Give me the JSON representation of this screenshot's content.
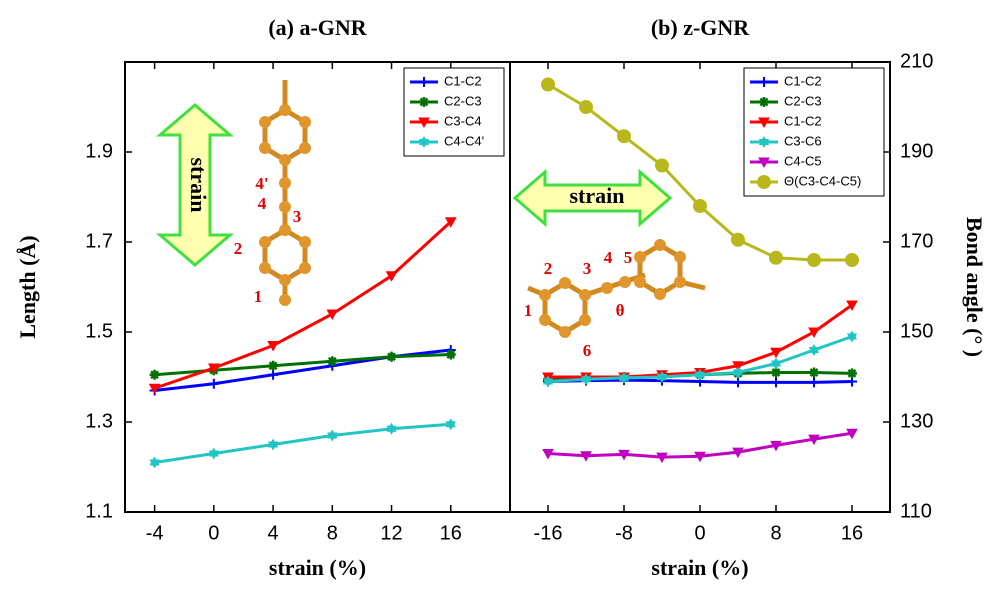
{
  "chart_data": [
    {
      "type": "line",
      "title": "(a) a-GNR",
      "xlabel": "strain (%)",
      "ylabel": "Length (Å)",
      "x": [
        -4,
        0,
        4,
        8,
        12,
        16
      ],
      "xlim": [
        -6,
        20
      ],
      "xticks": [
        -4,
        0,
        4,
        8,
        12,
        16
      ],
      "ylim": [
        1.1,
        2.1
      ],
      "yticks": [
        1.1,
        1.3,
        1.5,
        1.7,
        1.9
      ],
      "legend": "upper right",
      "series": [
        {
          "name": "C1-C2",
          "color": "#0000ff",
          "marker": "plus",
          "values": [
            1.37,
            1.385,
            1.405,
            1.425,
            1.445,
            1.46
          ]
        },
        {
          "name": "C2-C3",
          "color": "#007000",
          "marker": "star",
          "values": [
            1.405,
            1.415,
            1.425,
            1.435,
            1.445,
            1.45
          ]
        },
        {
          "name": "C3-C4",
          "color": "#ff0000",
          "marker": "triangle-down",
          "values": [
            1.375,
            1.42,
            1.47,
            1.54,
            1.625,
            1.745
          ]
        },
        {
          "name": "C4-C4'",
          "color": "#22c4c4",
          "marker": "hexagram",
          "values": [
            1.21,
            1.23,
            1.25,
            1.27,
            1.285,
            1.295
          ]
        }
      ],
      "annotations": [
        "strain",
        "4'",
        "4",
        "3",
        "2",
        "1"
      ]
    },
    {
      "type": "line",
      "title": "(b) z-GNR",
      "xlabel": "strain (%)",
      "y2label": "Bond angle (° )",
      "x": [
        -16,
        -12,
        -8,
        -4,
        0,
        4,
        8,
        12,
        16
      ],
      "xlim": [
        -20,
        20
      ],
      "xticks": [
        -16,
        -8,
        0,
        8,
        16
      ],
      "ylim": [
        1.1,
        2.1
      ],
      "y2lim": [
        110,
        210
      ],
      "y2ticks": [
        110,
        130,
        150,
        170,
        190,
        210
      ],
      "legend": "upper right",
      "series": [
        {
          "name": "C1-C2",
          "color": "#0000ff",
          "marker": "plus",
          "values": [
            1.39,
            1.392,
            1.393,
            1.392,
            1.39,
            1.388,
            1.388,
            1.388,
            1.39
          ]
        },
        {
          "name": "C2-C3",
          "color": "#007000",
          "marker": "star",
          "values": [
            1.395,
            1.398,
            1.4,
            1.402,
            1.405,
            1.408,
            1.41,
            1.41,
            1.408
          ]
        },
        {
          "name": "C1-C2",
          "color": "#ff0000",
          "marker": "triangle-down",
          "values": [
            1.4,
            1.4,
            1.4,
            1.405,
            1.41,
            1.425,
            1.455,
            1.5,
            1.56
          ]
        },
        {
          "name": "C3-C6",
          "color": "#22c4c4",
          "marker": "hexagram",
          "values": [
            1.39,
            1.395,
            1.398,
            1.4,
            1.405,
            1.41,
            1.43,
            1.46,
            1.49
          ]
        },
        {
          "name": "C4-C5",
          "color": "#c000c0",
          "marker": "triangle-down",
          "values": [
            1.23,
            1.225,
            1.228,
            1.222,
            1.224,
            1.233,
            1.248,
            1.262,
            1.275
          ]
        },
        {
          "name": "Θ(C3-C4-C5)",
          "color": "#b8b81c",
          "marker": "circle",
          "axis": "y2",
          "values": [
            205,
            200,
            193.5,
            187,
            178,
            170.5,
            166.5,
            166,
            166
          ]
        }
      ],
      "annotations": [
        "strain",
        "1",
        "2",
        "3",
        "4",
        "5",
        "6",
        "θ"
      ]
    }
  ]
}
